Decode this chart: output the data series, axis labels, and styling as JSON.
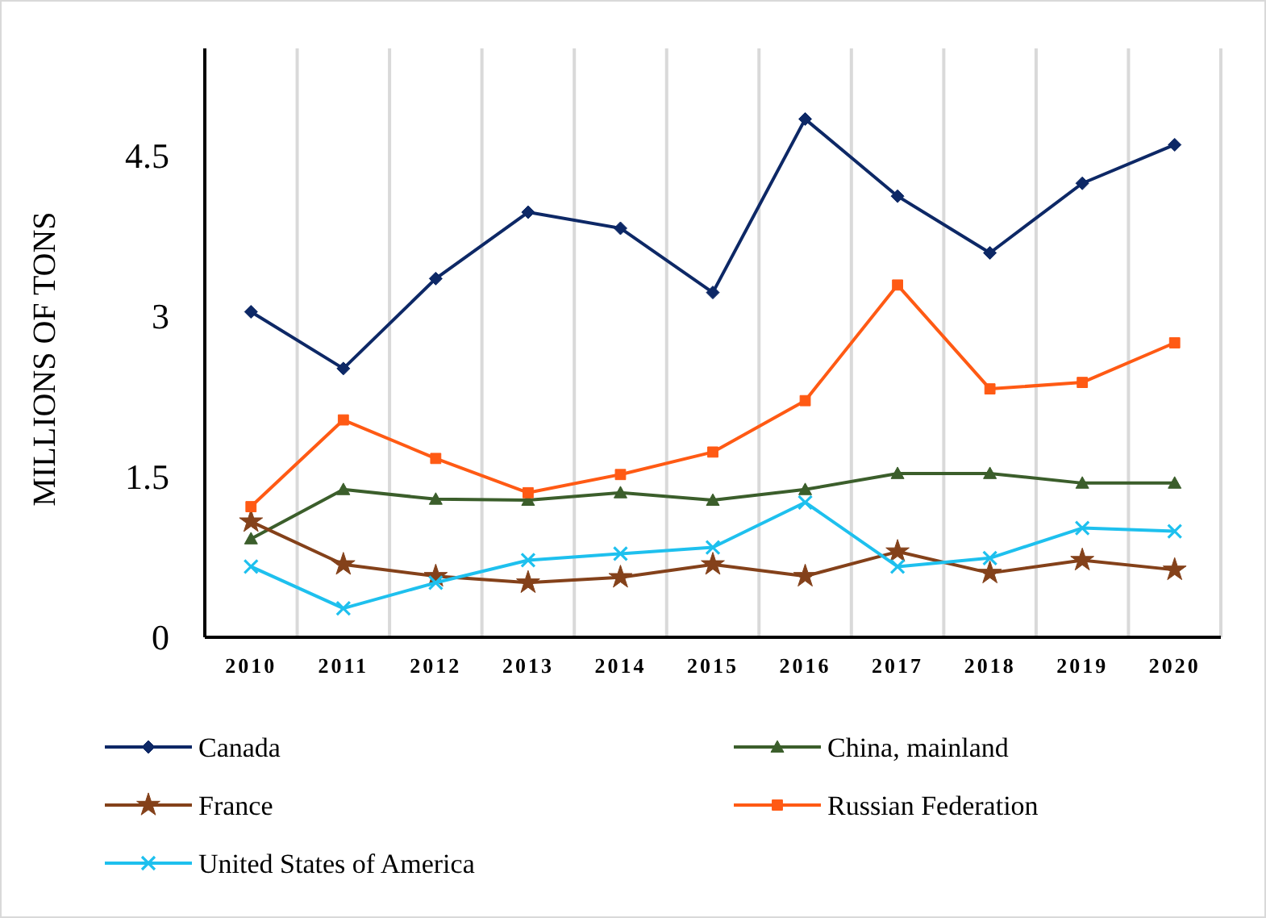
{
  "chart_data": {
    "type": "line",
    "ylabel": "MILLIONS OF TONS",
    "categories": [
      "2010",
      "2011",
      "2012",
      "2013",
      "2014",
      "2015",
      "2016",
      "2017",
      "2018",
      "2019",
      "2020"
    ],
    "series": [
      {
        "name": "Canada",
        "color": "#0d2866",
        "marker": "diamond",
        "values": [
          3.04,
          2.51,
          3.35,
          3.97,
          3.82,
          3.22,
          4.84,
          4.12,
          3.59,
          4.24,
          4.6
        ]
      },
      {
        "name": "China, mainland",
        "color": "#3b5e2b",
        "marker": "triangle",
        "values": [
          0.92,
          1.38,
          1.29,
          1.28,
          1.35,
          1.28,
          1.38,
          1.53,
          1.53,
          1.44,
          1.44
        ]
      },
      {
        "name": "France",
        "color": "#84411a",
        "marker": "star",
        "values": [
          1.08,
          0.68,
          0.57,
          0.51,
          0.56,
          0.68,
          0.57,
          0.8,
          0.6,
          0.72,
          0.63
        ]
      },
      {
        "name": "Russian Federation",
        "color": "#ff5a14",
        "marker": "square",
        "values": [
          1.22,
          2.03,
          1.67,
          1.35,
          1.52,
          1.73,
          2.21,
          3.29,
          2.32,
          2.38,
          2.75
        ]
      },
      {
        "name": "United States of America",
        "color": "#1ec0ee",
        "marker": "cross",
        "values": [
          0.66,
          0.27,
          0.51,
          0.72,
          0.78,
          0.84,
          1.26,
          0.66,
          0.74,
          1.02,
          0.99
        ]
      }
    ],
    "ylim": [
      0,
      5.5
    ],
    "yticks": [
      0,
      1.5,
      3,
      4.5
    ],
    "grid": "x",
    "legend": "bottom"
  }
}
